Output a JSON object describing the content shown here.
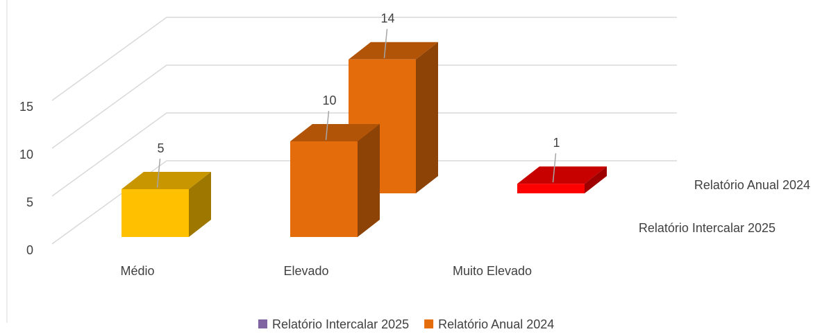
{
  "chart_data": {
    "type": "bar3d",
    "categories": [
      "Médio",
      "Elevado",
      "Muito Elevado"
    ],
    "series": [
      {
        "name": "Relatório Intercalar 2025",
        "color": "#8064a2",
        "values": [
          5,
          10,
          null
        ],
        "point_colors": [
          "#ffc000",
          "#e46c0a",
          null
        ]
      },
      {
        "name": "Relatório Anual 2024",
        "color": "#e46c0a",
        "values": [
          null,
          14,
          1
        ],
        "point_colors": [
          null,
          "#e46c0a",
          "#ff0000"
        ]
      }
    ],
    "ylim": [
      0,
      15
    ],
    "yticks": [
      0,
      5,
      10,
      15
    ],
    "grid": true,
    "legend": "bottom"
  }
}
